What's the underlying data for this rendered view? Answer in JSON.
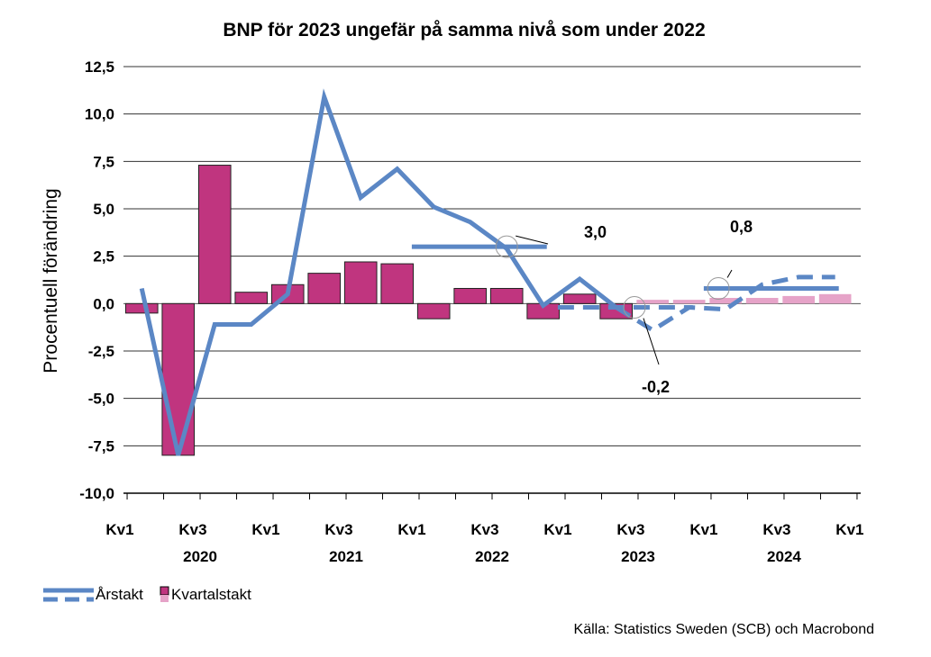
{
  "chart_data": {
    "type": "bar",
    "title": "BNP för 2023 ungefär på samma nivå som under 2022",
    "ylabel": "Procentuell förändring",
    "ylim": [
      -10,
      12.5
    ],
    "yticks": [
      "-10,0",
      "-7,5",
      "-5,0",
      "-2,5",
      "0,0",
      "2,5",
      "5,0",
      "7,5",
      "10,0",
      "12,5"
    ],
    "ytick_values": [
      -10,
      -7.5,
      -5,
      -2.5,
      0,
      2.5,
      5,
      7.5,
      10,
      12.5
    ],
    "x_tick_labels": [
      "Kv1",
      "Kv3",
      "Kv1",
      "Kv3",
      "Kv1",
      "Kv3",
      "Kv1",
      "Kv3",
      "Kv1",
      "Kv3",
      "Kv1"
    ],
    "year_labels": [
      "2020",
      "2021",
      "2022",
      "2023",
      "2024"
    ],
    "grid": true,
    "legend_placement": "bottom-left",
    "quarters": [
      "2020 Kv1",
      "2020 Kv2",
      "2020 Kv3",
      "2020 Kv4",
      "2021 Kv1",
      "2021 Kv2",
      "2021 Kv3",
      "2021 Kv4",
      "2022 Kv1",
      "2022 Kv2",
      "2022 Kv3",
      "2022 Kv4",
      "2023 Kv1",
      "2023 Kv2",
      "2023 Kv3",
      "2023 Kv4",
      "2024 Kv1",
      "2024 Kv2",
      "2024 Kv3",
      "2024 Kv4"
    ],
    "series": [
      {
        "name": "Kvartalstakt",
        "kind": "bar",
        "color": "#c0357f",
        "forecast_color": "#e6a3c8",
        "values": [
          -0.5,
          -8.0,
          7.3,
          0.6,
          1.0,
          1.6,
          2.2,
          2.1,
          -0.8,
          0.8,
          0.8,
          -0.8,
          0.5,
          -0.8,
          0.2,
          0.2,
          0.3,
          0.3,
          0.4,
          0.5
        ],
        "forecast_from_index": 14
      },
      {
        "name": "Årstakt",
        "kind": "line",
        "color": "#5b87c5",
        "values": [
          0.8,
          -8.0,
          -1.1,
          -1.1,
          0.5,
          10.9,
          5.6,
          7.1,
          5.1,
          4.3,
          2.9,
          -0.1,
          1.3,
          -0.2,
          -1.4,
          -0.2,
          -0.3,
          1.0,
          1.4,
          1.4
        ],
        "dashed_from_index": 13
      }
    ],
    "annual_averages": [
      {
        "label": "3,0",
        "value": 3.0,
        "year": "2022",
        "dashed": false
      },
      {
        "label": "-0,2",
        "value": -0.2,
        "year": "2023",
        "dashed": true
      },
      {
        "label": "0,8",
        "value": 0.8,
        "year": "2024",
        "dashed": false
      }
    ]
  },
  "legend": {
    "line_label": "Årstakt",
    "bar_label": "Kvartalstakt"
  },
  "source": "Källa: Statistics Sweden (SCB) och Macrobond"
}
